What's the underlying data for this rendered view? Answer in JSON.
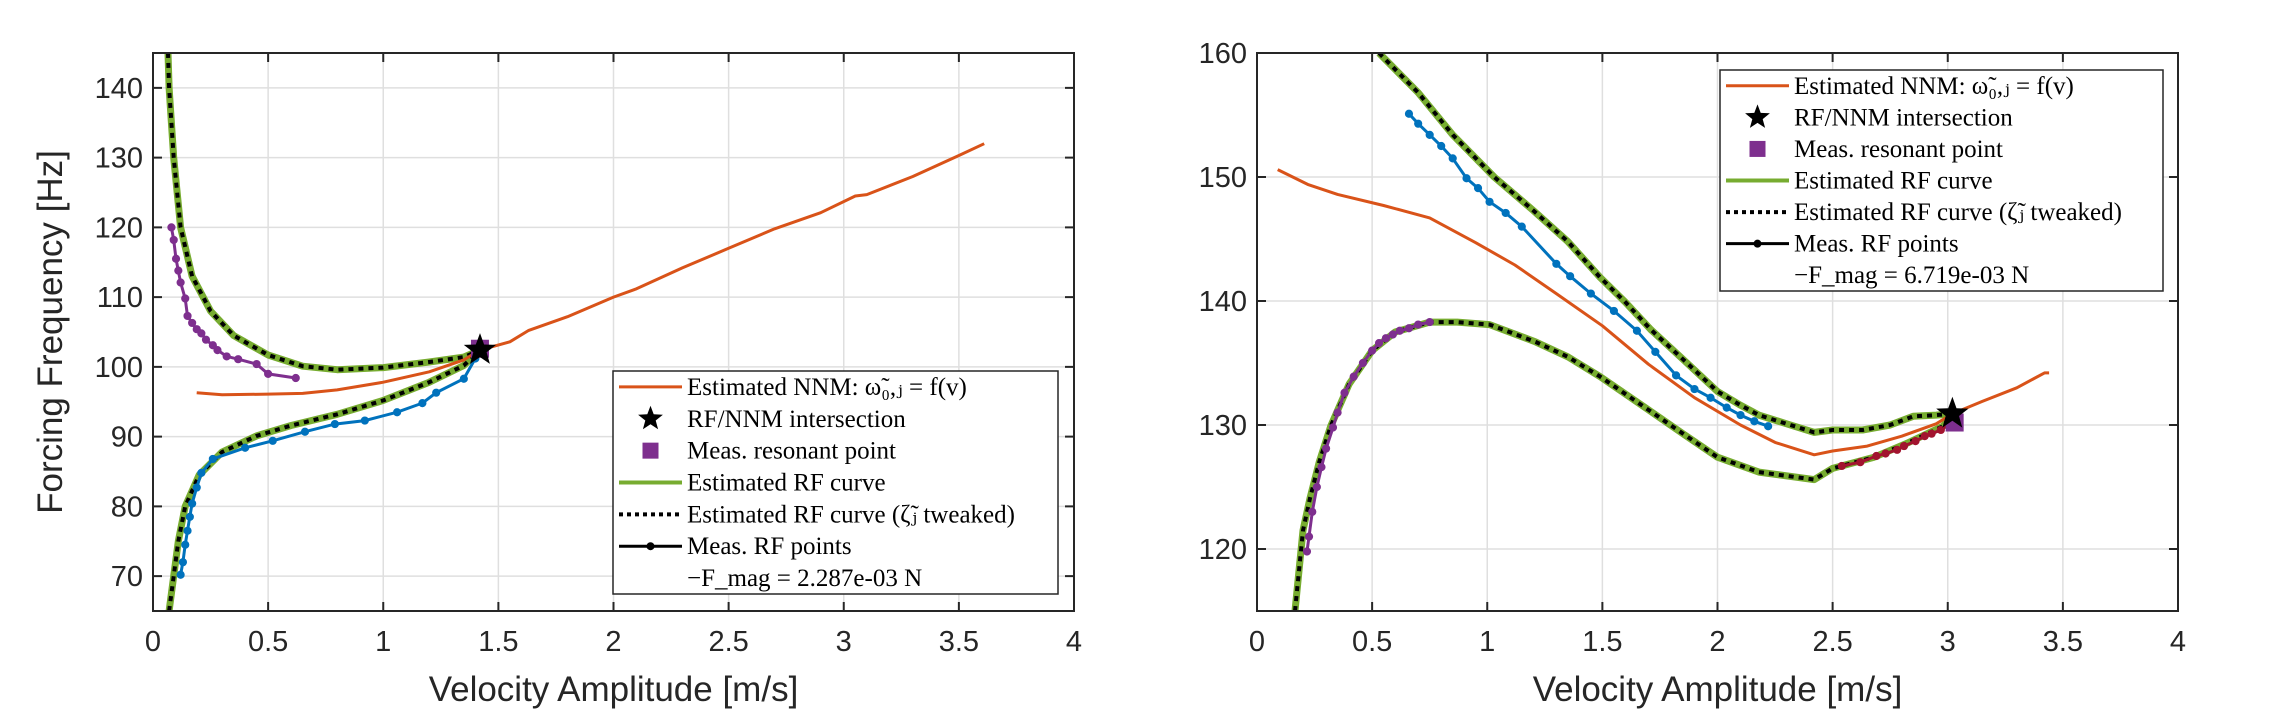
{
  "colors": {
    "nnm": "#d95319",
    "rf_curve": "#77ac30",
    "rf_tweaked": "#000000",
    "meas_upper_left": "#7e2f8e",
    "meas_lower_left": "#0072bd",
    "meas_red": "#a2142f",
    "resonant_point": "#7e2f8e",
    "star": "#000000"
  },
  "chart_data": [
    {
      "type": "line",
      "title": "",
      "xlabel": "Velocity Amplitude [m/s]",
      "ylabel": "Forcing Frequency [Hz]",
      "xlim": [
        0,
        4
      ],
      "ylim": [
        65,
        145
      ],
      "xticks": [
        0,
        0.5,
        1,
        1.5,
        2,
        2.5,
        3,
        3.5,
        4
      ],
      "xtick_labels": [
        "0",
        "0.5",
        "1",
        "1.5",
        "2",
        "2.5",
        "3",
        "3.5",
        "4"
      ],
      "yticks": [
        70,
        80,
        90,
        100,
        110,
        120,
        130,
        140
      ],
      "ytick_labels": [
        "70",
        "80",
        "90",
        "100",
        "110",
        "120",
        "130",
        "140"
      ],
      "grid": true,
      "legend_position": "bottom-right",
      "legend": [
        {
          "label": "Estimated NNM: ω̃₀,ⱼ = f(v)",
          "style": "line",
          "color_key": "nnm"
        },
        {
          "label": "RF/NNM intersection",
          "style": "star",
          "color_key": "star"
        },
        {
          "label": "Meas. resonant point",
          "style": "square",
          "color_key": "resonant_point"
        },
        {
          "label": "Estimated RF curve",
          "style": "line",
          "color_key": "rf_curve"
        },
        {
          "label": "Estimated RF curve (ζ̃ⱼ tweaked)",
          "style": "dotted",
          "color_key": "rf_tweaked"
        },
        {
          "label": "Meas. RF points",
          "style": "line-marker",
          "color_key": "rf_tweaked"
        },
        {
          "label": "−F_mag = 2.287e-03 N",
          "style": "none",
          "color_key": ""
        }
      ],
      "series": [
        {
          "name": "Estimated NNM",
          "kind": "line",
          "color_key": "nnm",
          "x": [
            0.19,
            0.3,
            0.5,
            0.65,
            0.8,
            1.0,
            1.2,
            1.35,
            1.42,
            1.55,
            1.63,
            1.8,
            2.0,
            2.1,
            2.3,
            2.5,
            2.7,
            2.9,
            3.05,
            3.1,
            3.3,
            3.5,
            3.61
          ],
          "y": [
            96.3,
            96.0,
            96.1,
            96.2,
            96.7,
            97.8,
            99.3,
            101.0,
            102.4,
            103.6,
            105.2,
            107.2,
            110.0,
            111.2,
            114.2,
            117.0,
            119.8,
            122.1,
            124.5,
            124.7,
            127.3,
            130.3,
            132.0
          ]
        },
        {
          "name": "Estimated RF curve (upper branch)",
          "kind": "rf",
          "color_key": "rf_curve",
          "x": [
            0.065,
            0.07,
            0.09,
            0.12,
            0.17,
            0.25,
            0.35,
            0.5,
            0.65,
            0.8,
            1.0,
            1.2,
            1.35,
            1.42
          ],
          "y": [
            145,
            140,
            130,
            120,
            113,
            108,
            104.5,
            101.7,
            100.1,
            99.6,
            99.9,
            100.7,
            101.4,
            102.4
          ]
        },
        {
          "name": "Estimated RF curve (lower branch)",
          "kind": "rf",
          "color_key": "rf_curve",
          "x": [
            0.07,
            0.09,
            0.11,
            0.14,
            0.2,
            0.3,
            0.45,
            0.6,
            0.8,
            1.0,
            1.2,
            1.35,
            1.42
          ],
          "y": [
            65,
            70,
            75,
            80,
            84.5,
            87.8,
            90.1,
            91.6,
            93.2,
            95.2,
            97.8,
            100.2,
            102.4
          ]
        },
        {
          "name": "Meas. RF points (upper)",
          "kind": "meas",
          "color_key": "meas_upper_left",
          "x": [
            0.08,
            0.09,
            0.1,
            0.11,
            0.12,
            0.14,
            0.15,
            0.17,
            0.19,
            0.21,
            0.23,
            0.26,
            0.28,
            0.32,
            0.37,
            0.45,
            0.5,
            0.62
          ],
          "y": [
            120,
            118.2,
            115.5,
            113.8,
            112.1,
            109.8,
            107.3,
            106.3,
            105.4,
            104.8,
            103.9,
            103.1,
            102.4,
            101.5,
            101.1,
            100.4,
            99.0,
            98.4
          ]
        },
        {
          "name": "Meas. RF points (lower)",
          "kind": "meas",
          "color_key": "meas_lower_left",
          "x": [
            0.12,
            0.13,
            0.14,
            0.15,
            0.16,
            0.17,
            0.19,
            0.21,
            0.26,
            0.4,
            0.52,
            0.66,
            0.79,
            0.92,
            1.06,
            1.17,
            1.23,
            1.35,
            1.4
          ],
          "y": [
            70.2,
            72.0,
            74.5,
            76.5,
            78.5,
            80.4,
            82.7,
            84.8,
            86.8,
            88.4,
            89.4,
            90.7,
            91.8,
            92.3,
            93.5,
            94.8,
            96.3,
            98.3,
            101.2
          ]
        }
      ],
      "resonant_point": {
        "x": 1.42,
        "y": 102.6
      },
      "intersection": {
        "x": 1.42,
        "y": 102.4
      }
    },
    {
      "type": "line",
      "title": "",
      "xlabel": "Velocity Amplitude [m/s]",
      "ylabel": "",
      "xlim": [
        0,
        4
      ],
      "ylim": [
        115,
        160
      ],
      "xticks": [
        0,
        0.5,
        1,
        1.5,
        2,
        2.5,
        3,
        3.5,
        4
      ],
      "xtick_labels": [
        "0",
        "0.5",
        "1",
        "1.5",
        "2",
        "2.5",
        "3",
        "3.5",
        "4"
      ],
      "yticks": [
        120,
        130,
        140,
        150,
        160
      ],
      "ytick_labels": [
        "120",
        "130",
        "140",
        "150",
        "160"
      ],
      "grid": true,
      "legend_position": "top-right",
      "legend": [
        {
          "label": "Estimated NNM: ω̃₀,ⱼ = f(v)",
          "style": "line",
          "color_key": "nnm"
        },
        {
          "label": "RF/NNM intersection",
          "style": "star",
          "color_key": "star"
        },
        {
          "label": "Meas. resonant point",
          "style": "square",
          "color_key": "resonant_point"
        },
        {
          "label": "Estimated RF curve",
          "style": "line",
          "color_key": "rf_curve"
        },
        {
          "label": "Estimated RF curve (ζ̃ⱼ tweaked)",
          "style": "dotted",
          "color_key": "rf_tweaked"
        },
        {
          "label": "Meas. RF points",
          "style": "line-marker",
          "color_key": "rf_tweaked"
        },
        {
          "label": "−F_mag = 6.719e-03 N",
          "style": "none",
          "color_key": ""
        }
      ],
      "series": [
        {
          "name": "Estimated NNM",
          "kind": "line",
          "color_key": "nnm",
          "x": [
            0.09,
            0.22,
            0.35,
            0.55,
            0.75,
            0.95,
            1.12,
            1.3,
            1.5,
            1.7,
            1.9,
            2.1,
            2.25,
            2.42,
            2.5,
            2.65,
            2.8,
            2.95,
            3.02,
            3.15,
            3.3,
            3.42,
            3.44
          ],
          "y": [
            150.6,
            149.4,
            148.6,
            147.7,
            146.7,
            144.7,
            142.9,
            140.6,
            138.0,
            134.9,
            132.2,
            130.0,
            128.6,
            127.6,
            127.9,
            128.3,
            129.1,
            130.1,
            130.9,
            131.9,
            133.0,
            134.2,
            134.2
          ]
        },
        {
          "name": "Estimated RF curve (upper branch)",
          "kind": "rf",
          "color_key": "rf_curve",
          "x": [
            0.53,
            0.7,
            0.85,
            1.03,
            1.2,
            1.35,
            1.49,
            1.6,
            1.71,
            1.85,
            2.0,
            2.1,
            2.18,
            2.3,
            2.42,
            2.5,
            2.63,
            2.75,
            2.85,
            2.95,
            3.02
          ],
          "y": [
            160,
            156.8,
            153.4,
            150.0,
            147.3,
            144.8,
            141.9,
            139.9,
            137.7,
            135.3,
            132.7,
            131.6,
            130.8,
            130.1,
            129.4,
            129.6,
            129.6,
            130.0,
            130.7,
            130.8,
            130.9
          ]
        },
        {
          "name": "Estimated RF curve (lower branch)",
          "kind": "rf",
          "color_key": "rf_curve",
          "x": [
            0.165,
            0.2,
            0.23,
            0.27,
            0.32,
            0.4,
            0.5,
            0.6,
            0.75,
            0.87,
            1.01,
            1.21,
            1.35,
            1.49,
            1.71,
            1.85,
            2.0,
            2.18,
            2.42,
            2.5,
            2.68,
            2.82,
            2.98,
            3.02
          ],
          "y": [
            115,
            121.5,
            124.1,
            127.0,
            129.9,
            133.3,
            136.0,
            137.5,
            138.3,
            138.3,
            138.1,
            136.7,
            135.5,
            133.9,
            131.1,
            129.3,
            127.4,
            126.2,
            125.6,
            126.5,
            127.4,
            128.5,
            129.9,
            130.9
          ]
        },
        {
          "name": "Meas. RF points (upper)",
          "kind": "meas",
          "color_key": "meas_lower_left",
          "x": [
            0.66,
            0.7,
            0.75,
            0.8,
            0.85,
            0.91,
            0.96,
            1.01,
            1.08,
            1.15,
            1.3,
            1.36,
            1.45,
            1.55,
            1.65,
            1.73,
            1.82,
            1.9,
            1.97,
            2.04,
            2.1,
            2.16,
            2.22
          ],
          "y": [
            155.1,
            154.3,
            153.4,
            152.5,
            151.5,
            149.9,
            149.1,
            148.0,
            147.1,
            146.0,
            143.0,
            142.0,
            140.6,
            139.2,
            137.6,
            135.9,
            134.0,
            132.9,
            132.2,
            131.4,
            130.8,
            130.3,
            129.9
          ]
        },
        {
          "name": "Meas. RF points (lower-left)",
          "kind": "meas",
          "color_key": "meas_upper_left",
          "x": [
            0.217,
            0.226,
            0.24,
            0.26,
            0.28,
            0.3,
            0.33,
            0.35,
            0.38,
            0.42,
            0.46,
            0.5,
            0.53,
            0.56,
            0.59,
            0.62,
            0.66,
            0.7,
            0.75
          ],
          "y": [
            119.8,
            121.0,
            123.0,
            125.0,
            126.6,
            128.1,
            129.8,
            131.0,
            132.6,
            133.9,
            135.0,
            136.0,
            136.6,
            137.0,
            137.3,
            137.6,
            137.8,
            138.1,
            138.3
          ]
        },
        {
          "name": "Meas. RF points (near resonance)",
          "kind": "meas",
          "color_key": "meas_red",
          "x": [
            2.54,
            2.62,
            2.69,
            2.73,
            2.78,
            2.81,
            2.86,
            2.9,
            2.93,
            2.97,
            3.0
          ],
          "y": [
            126.7,
            127.0,
            127.5,
            127.7,
            128.0,
            128.3,
            128.7,
            129.1,
            129.3,
            129.6,
            130.0
          ]
        }
      ],
      "resonant_point": {
        "x": 3.03,
        "y": 130.2
      },
      "intersection": {
        "x": 3.02,
        "y": 130.9
      }
    }
  ]
}
